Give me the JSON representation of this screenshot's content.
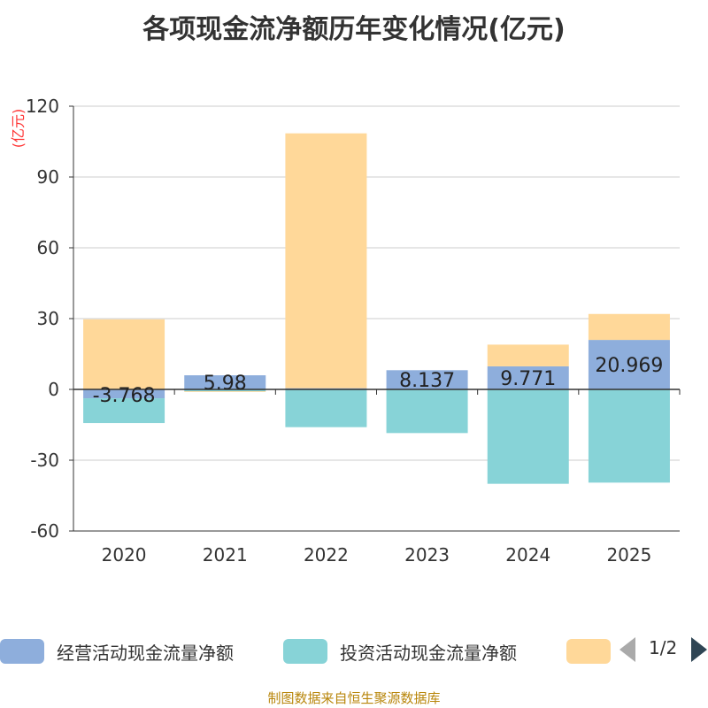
{
  "chart_data": {
    "type": "bar",
    "stacked": true,
    "title": "各项现金流净额历年变化情况(亿元)",
    "ylabel": "(亿元)",
    "ylim": [
      -60,
      120
    ],
    "yticks": [
      "120",
      "90",
      "60",
      "30",
      "0",
      "-30",
      "-60"
    ],
    "yticks_values": [
      120,
      90,
      60,
      30,
      0,
      -30,
      -60
    ],
    "categories": [
      "2020",
      "2021",
      "2022",
      "2023",
      "2024",
      "2025"
    ],
    "grid": true,
    "legend_position": "bottom",
    "series": [
      {
        "name": "经营活动现金流量净额",
        "color": "#8eaedc",
        "values": [
          -3.768,
          5.98,
          0.5,
          8.137,
          9.771,
          20.969
        ],
        "labels": [
          "-3.768",
          "5.98",
          "",
          "8.137",
          "9.771",
          "20.969"
        ]
      },
      {
        "name": "投资活动现金流量净额",
        "color": "#87d3d7",
        "values": [
          -10.5,
          -0.8,
          -16,
          -18.5,
          -40,
          -39.5
        ]
      },
      {
        "name": "",
        "color": "#ffd899",
        "values": [
          29.7,
          -0.3,
          108,
          0,
          9.2,
          11
        ]
      }
    ]
  },
  "legend": {
    "items": [
      "经营活动现金流量净额",
      "投资活动现金流量净额",
      ""
    ],
    "page": "1/2"
  },
  "source": "制图数据来自恒生聚源数据库"
}
